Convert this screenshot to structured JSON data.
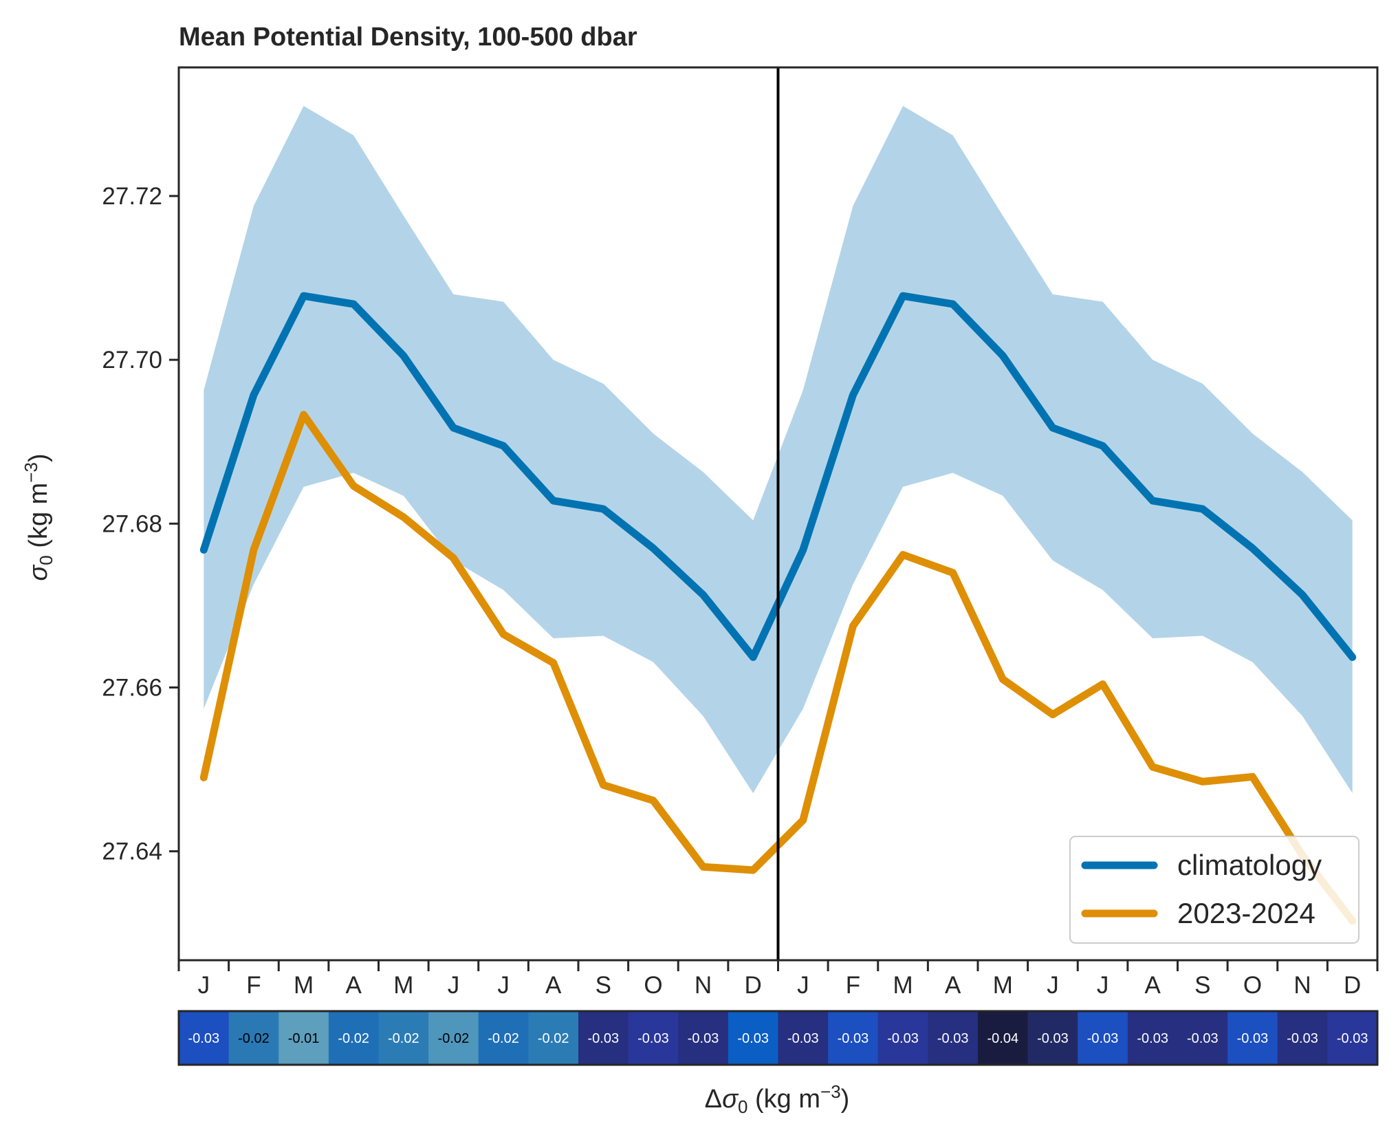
{
  "chart_data": {
    "type": "line",
    "title": "Mean Potential Density, 100-500 dbar",
    "ylabel": "σ0 (kg m−3)",
    "xlabel": "Δσ0 (kg m−3)",
    "x_tick_labels": [
      "J",
      "F",
      "M",
      "A",
      "M",
      "J",
      "J",
      "A",
      "S",
      "O",
      "N",
      "D",
      "J",
      "F",
      "M",
      "A",
      "M",
      "J",
      "J",
      "A",
      "S",
      "O",
      "N",
      "D"
    ],
    "y_ticks": [
      "27.64",
      "27.66",
      "27.68",
      "27.70",
      "27.72"
    ],
    "ylim": [
      27.6267,
      27.7357
    ],
    "xlim": [
      0.5,
      24.5
    ],
    "legend_position": "lower right",
    "colors": {
      "climatology": "#0173b2",
      "recent": "#de8f05",
      "band": "#b3d4e8"
    },
    "series": [
      {
        "name": "climatology",
        "values": [
          27.6768,
          27.6957,
          27.7078,
          27.7068,
          27.7005,
          27.6917,
          27.6895,
          27.6828,
          27.6818,
          27.677,
          27.6713,
          27.6637,
          27.6768,
          27.6957,
          27.7078,
          27.7068,
          27.7005,
          27.6917,
          27.6895,
          27.6828,
          27.6818,
          27.677,
          27.6713,
          27.6637
        ]
      },
      {
        "name": "2023-2024",
        "values": [
          27.649,
          27.6768,
          27.6933,
          27.6846,
          27.6808,
          27.6758,
          27.6665,
          27.663,
          27.6481,
          27.6462,
          27.6381,
          27.6377,
          27.6438,
          27.6675,
          27.6762,
          27.674,
          27.661,
          27.6567,
          27.6604,
          27.6503,
          27.6485,
          27.6491,
          27.6395,
          27.6315
        ]
      }
    ],
    "band_upper": [
      27.6963,
      27.7188,
      27.731,
      27.7274,
      27.7176,
      27.708,
      27.7071,
      27.7,
      27.6971,
      27.691,
      27.6863,
      27.6804,
      27.6963,
      27.7188,
      27.731,
      27.7274,
      27.7176,
      27.708,
      27.7071,
      27.7,
      27.6971,
      27.691,
      27.6863,
      27.6804
    ],
    "band_lower": [
      27.6574,
      27.6726,
      27.6845,
      27.6862,
      27.6834,
      27.6755,
      27.6719,
      27.666,
      27.6663,
      27.6631,
      27.6565,
      27.6471,
      27.6574,
      27.6726,
      27.6845,
      27.6862,
      27.6834,
      27.6755,
      27.6719,
      27.666,
      27.6663,
      27.6631,
      27.6565,
      27.6471
    ],
    "divider_x": 12.5,
    "difference_strip": {
      "labels": [
        "-0.03",
        "-0.02",
        "-0.01",
        "-0.02",
        "-0.02",
        "-0.02",
        "-0.02",
        "-0.02",
        "-0.03",
        "-0.03",
        "-0.03",
        "-0.03",
        "-0.03",
        "-0.03",
        "-0.03",
        "-0.03",
        "-0.04",
        "-0.03",
        "-0.03",
        "-0.03",
        "-0.03",
        "-0.03",
        "-0.03",
        "-0.03"
      ],
      "colors": [
        "#1c4fc0",
        "#2a79b4",
        "#5d9fbd",
        "#1f6fb7",
        "#2b7cb5",
        "#4f96bd",
        "#1f6fb7",
        "#2b7cb5",
        "#262f80",
        "#29379a",
        "#262f80",
        "#0b5ec4",
        "#262f80",
        "#1c4fc0",
        "#29379a",
        "#262f80",
        "#191c3f",
        "#222a66",
        "#1c4fc0",
        "#262f80",
        "#262f80",
        "#1c4fc0",
        "#262f80",
        "#29379a"
      ],
      "text_colors": [
        "#ffffff",
        "#000000",
        "#000000",
        "#ffffff",
        "#ffffff",
        "#000000",
        "#ffffff",
        "#ffffff",
        "#ffffff",
        "#ffffff",
        "#ffffff",
        "#ffffff",
        "#ffffff",
        "#ffffff",
        "#ffffff",
        "#ffffff",
        "#ffffff",
        "#ffffff",
        "#ffffff",
        "#ffffff",
        "#ffffff",
        "#ffffff",
        "#ffffff",
        "#ffffff"
      ]
    }
  }
}
